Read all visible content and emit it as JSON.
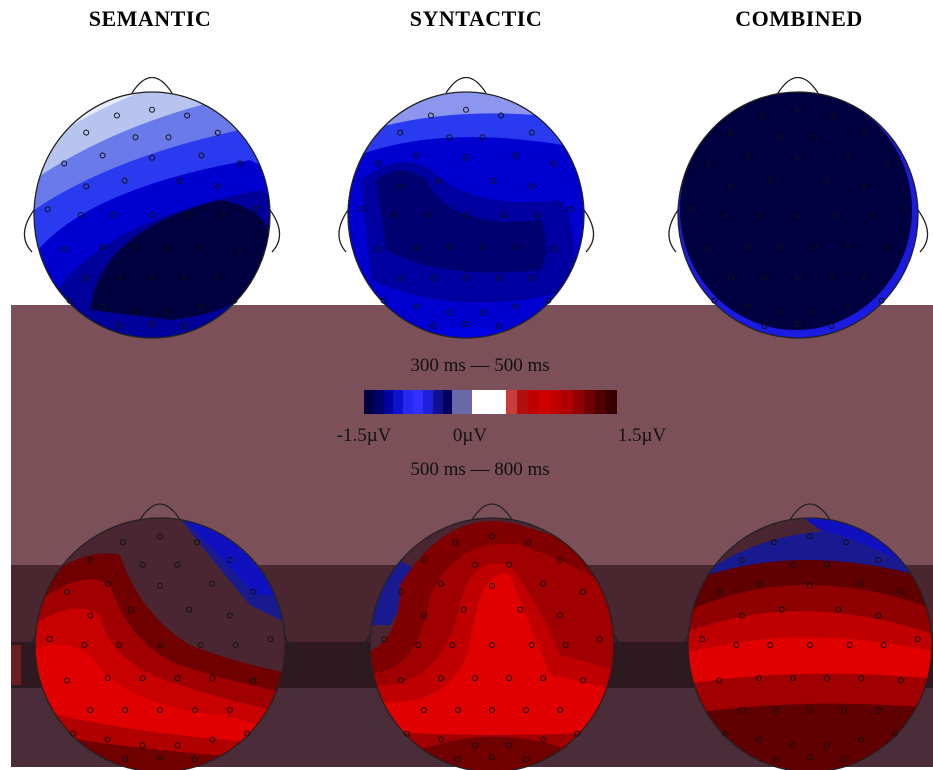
{
  "columns": [
    {
      "title": "SEMANTIC"
    },
    {
      "title": "SYNTACTIC"
    },
    {
      "title": "COMBINED"
    }
  ],
  "windows": {
    "early": "300 ms — 500 ms",
    "late": "500 ms — 800 ms"
  },
  "colorbar": {
    "min_label": "-1.5µV",
    "mid_label": "0µV",
    "max_label": "1.5µV",
    "negative_colors": [
      "#000040",
      "#00006a",
      "#0000a0",
      "#1010d0",
      "#2828f0",
      "#3030ff",
      "#2020d8",
      "#101090",
      "#000060",
      "#6a6aaa",
      "#6a6aaa"
    ],
    "positive_colors": [
      "#c83c3c",
      "#b01010",
      "#c00000",
      "#d00000",
      "#c00000",
      "#b00000",
      "#900000",
      "#700000",
      "#500000",
      "#3a0000"
    ],
    "gap_color": "#ffffff"
  },
  "colors": {
    "dark_blue": "#000040",
    "blue": "#0000e0",
    "light_blue": "#b8c4f0",
    "dark_red": "#500008",
    "red": "#e00000",
    "light_red": "#ff7070"
  }
}
